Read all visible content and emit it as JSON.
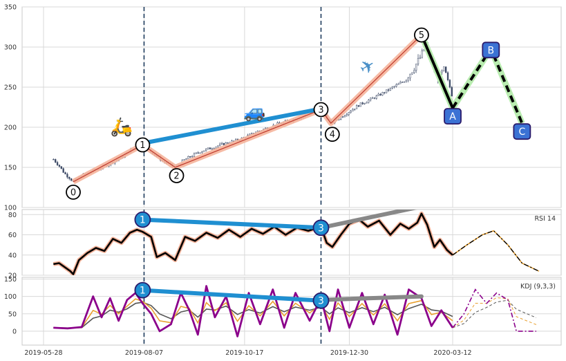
{
  "chart_data": [
    {
      "type": "line",
      "panel": "price",
      "title": "",
      "xlabel": "",
      "ylabel": "",
      "x_ticks": [
        "2019-05-28",
        "2019-08-07",
        "2019-10-17",
        "2019-12-30",
        "2020-03-12"
      ],
      "ylim": [
        100,
        350
      ],
      "y_ticks": [
        100,
        150,
        200,
        250,
        300,
        350
      ],
      "grid": true,
      "vertical_markers": [
        "2019-08-07",
        "2019-12-10"
      ],
      "wave_points": [
        {
          "label": "0",
          "date": "2019-06-18",
          "value": 132
        },
        {
          "label": "1",
          "date": "2019-08-06",
          "value": 178
        },
        {
          "label": "2",
          "date": "2019-08-29",
          "value": 150
        },
        {
          "label": "3",
          "date": "2019-12-10",
          "value": 222
        },
        {
          "label": "4",
          "date": "2019-12-17",
          "value": 205
        },
        {
          "label": "5",
          "date": "2020-02-19",
          "value": 315
        }
      ],
      "projected_points": [
        {
          "label": "A",
          "date": "2020-03-12",
          "value": 224
        },
        {
          "label": "B",
          "date": "2020-04-08",
          "value": 298
        },
        {
          "label": "C",
          "date": "2020-04-30",
          "value": 205
        }
      ],
      "trend_1_3": [
        {
          "date": "2019-08-06",
          "value": 180
        },
        {
          "date": "2019-12-10",
          "value": 223
        }
      ],
      "icons": [
        "scooter-icon",
        "car-icon",
        "airplane-icon"
      ],
      "colors": {
        "candle": "#3d4a66",
        "wave": "#f5b49b",
        "trend": "#1f8fd1",
        "projection": "#b9ecb0",
        "marker": "#1d3a5c"
      },
      "price_path": [
        [
          "2019-06-04",
          160
        ],
        [
          "2019-06-08",
          152
        ],
        [
          "2019-06-12",
          142
        ],
        [
          "2019-06-16",
          136
        ],
        [
          "2019-06-18",
          132
        ],
        [
          "2019-06-24",
          140
        ],
        [
          "2019-07-01",
          145
        ],
        [
          "2019-07-08",
          150
        ],
        [
          "2019-07-15",
          156
        ],
        [
          "2019-07-22",
          162
        ],
        [
          "2019-07-29",
          172
        ],
        [
          "2019-08-06",
          178
        ],
        [
          "2019-08-13",
          168
        ],
        [
          "2019-08-20",
          158
        ],
        [
          "2019-08-29",
          150
        ],
        [
          "2019-09-05",
          160
        ],
        [
          "2019-09-16",
          170
        ],
        [
          "2019-09-30",
          178
        ],
        [
          "2019-10-14",
          185
        ],
        [
          "2019-10-28",
          196
        ],
        [
          "2019-11-11",
          205
        ],
        [
          "2019-11-25",
          212
        ],
        [
          "2019-12-10",
          222
        ],
        [
          "2019-12-17",
          205
        ],
        [
          "2019-12-26",
          215
        ],
        [
          "2020-01-06",
          228
        ],
        [
          "2020-01-20",
          240
        ],
        [
          "2020-01-30",
          250
        ],
        [
          "2020-02-07",
          258
        ],
        [
          "2020-02-14",
          275
        ],
        [
          "2020-02-19",
          290
        ],
        [
          "2020-02-22",
          302
        ],
        [
          "2020-02-26",
          280
        ],
        [
          "2020-03-02",
          262
        ],
        [
          "2020-03-06",
          272
        ],
        [
          "2020-03-10",
          250
        ],
        [
          "2020-03-12",
          236
        ]
      ]
    },
    {
      "type": "line",
      "panel": "rsi",
      "legend_label": "RSI 14",
      "ylim": [
        20,
        85
      ],
      "y_ticks": [
        20,
        40,
        60,
        80
      ],
      "colors": {
        "line": "#000000",
        "glow": "#f5b49b",
        "trend": "#1f8fd1",
        "extension": "#888888"
      },
      "points": [
        {
          "label": "1",
          "date": "2019-08-06",
          "value": 75
        },
        {
          "label": "3",
          "date": "2019-12-10",
          "value": 67
        }
      ],
      "extension": [
        {
          "date": "2019-12-10",
          "value": 67
        },
        {
          "date": "2020-02-19",
          "value": 88
        }
      ],
      "series": [
        [
          "2019-06-04",
          31
        ],
        [
          "2019-06-08",
          32
        ],
        [
          "2019-06-12",
          28
        ],
        [
          "2019-06-16",
          24
        ],
        [
          "2019-06-18",
          21
        ],
        [
          "2019-06-22",
          35
        ],
        [
          "2019-06-28",
          42
        ],
        [
          "2019-07-04",
          47
        ],
        [
          "2019-07-10",
          44
        ],
        [
          "2019-07-16",
          56
        ],
        [
          "2019-07-22",
          52
        ],
        [
          "2019-07-28",
          62
        ],
        [
          "2019-08-02",
          65
        ],
        [
          "2019-08-06",
          63
        ],
        [
          "2019-08-12",
          58
        ],
        [
          "2019-08-16",
          38
        ],
        [
          "2019-08-22",
          42
        ],
        [
          "2019-08-29",
          35
        ],
        [
          "2019-09-05",
          58
        ],
        [
          "2019-09-12",
          54
        ],
        [
          "2019-09-20",
          62
        ],
        [
          "2019-09-28",
          57
        ],
        [
          "2019-10-06",
          65
        ],
        [
          "2019-10-14",
          58
        ],
        [
          "2019-10-22",
          66
        ],
        [
          "2019-10-30",
          61
        ],
        [
          "2019-11-07",
          68
        ],
        [
          "2019-11-15",
          60
        ],
        [
          "2019-11-23",
          67
        ],
        [
          "2019-12-01",
          64
        ],
        [
          "2019-12-10",
          68
        ],
        [
          "2019-12-14",
          52
        ],
        [
          "2019-12-18",
          48
        ],
        [
          "2019-12-24",
          60
        ],
        [
          "2019-12-30",
          71
        ],
        [
          "2020-01-06",
          75
        ],
        [
          "2020-01-12",
          68
        ],
        [
          "2020-01-20",
          74
        ],
        [
          "2020-01-28",
          60
        ],
        [
          "2020-02-04",
          71
        ],
        [
          "2020-02-10",
          66
        ],
        [
          "2020-02-16",
          72
        ],
        [
          "2020-02-19",
          81
        ],
        [
          "2020-02-23",
          70
        ],
        [
          "2020-02-28",
          48
        ],
        [
          "2020-03-03",
          55
        ],
        [
          "2020-03-08",
          45
        ],
        [
          "2020-03-12",
          40
        ]
      ],
      "projection": [
        [
          "2020-03-12",
          40
        ],
        [
          "2020-03-22",
          50
        ],
        [
          "2020-04-02",
          60
        ],
        [
          "2020-04-10",
          64
        ],
        [
          "2020-04-20",
          50
        ],
        [
          "2020-04-30",
          32
        ],
        [
          "2020-05-12",
          24
        ]
      ]
    },
    {
      "type": "line",
      "panel": "kdj",
      "legend_label": "KDJ (9,3,3)",
      "ylim": [
        -40,
        155
      ],
      "y_ticks": [
        0,
        50,
        100,
        150
      ],
      "colors": {
        "k": "#e8a030",
        "d": "#555555",
        "j": "#8b008b",
        "trend": "#1f8fd1",
        "extension": "#888888"
      },
      "points": [
        {
          "label": "1",
          "date": "2019-08-06",
          "value": 118
        },
        {
          "label": "3",
          "date": "2019-12-10",
          "value": 88
        }
      ],
      "extension": [
        {
          "date": "2019-12-10",
          "value": 90
        },
        {
          "date": "2020-02-19",
          "value": 100
        }
      ],
      "j_series": [
        [
          "2019-06-04",
          10
        ],
        [
          "2019-06-14",
          8
        ],
        [
          "2019-06-24",
          12
        ],
        [
          "2019-07-02",
          100
        ],
        [
          "2019-07-08",
          40
        ],
        [
          "2019-07-14",
          95
        ],
        [
          "2019-07-20",
          30
        ],
        [
          "2019-07-26",
          90
        ],
        [
          "2019-08-01",
          110
        ],
        [
          "2019-08-06",
          80
        ],
        [
          "2019-08-12",
          50
        ],
        [
          "2019-08-18",
          0
        ],
        [
          "2019-08-26",
          20
        ],
        [
          "2019-09-02",
          110
        ],
        [
          "2019-09-08",
          60
        ],
        [
          "2019-09-14",
          -10
        ],
        [
          "2019-09-20",
          130
        ],
        [
          "2019-09-26",
          40
        ],
        [
          "2019-10-04",
          100
        ],
        [
          "2019-10-12",
          -15
        ],
        [
          "2019-10-20",
          110
        ],
        [
          "2019-10-28",
          20
        ],
        [
          "2019-11-06",
          120
        ],
        [
          "2019-11-14",
          10
        ],
        [
          "2019-11-22",
          110
        ],
        [
          "2019-12-02",
          30
        ],
        [
          "2019-12-10",
          95
        ],
        [
          "2019-12-16",
          0
        ],
        [
          "2019-12-22",
          120
        ],
        [
          "2019-12-30",
          10
        ],
        [
          "2020-01-08",
          110
        ],
        [
          "2020-01-16",
          20
        ],
        [
          "2020-01-24",
          105
        ],
        [
          "2020-02-02",
          -10
        ],
        [
          "2020-02-10",
          120
        ],
        [
          "2020-02-19",
          95
        ],
        [
          "2020-02-26",
          15
        ],
        [
          "2020-03-04",
          60
        ],
        [
          "2020-03-12",
          10
        ]
      ],
      "j_projection": [
        [
          "2020-03-12",
          10
        ],
        [
          "2020-03-20",
          50
        ],
        [
          "2020-03-28",
          120
        ],
        [
          "2020-04-05",
          80
        ],
        [
          "2020-04-12",
          110
        ],
        [
          "2020-04-20",
          90
        ],
        [
          "2020-04-26",
          0
        ],
        [
          "2020-05-10",
          0
        ]
      ]
    }
  ]
}
